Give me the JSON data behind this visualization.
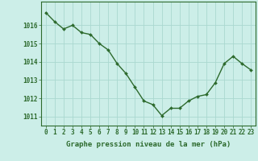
{
  "x": [
    0,
    1,
    2,
    3,
    4,
    5,
    6,
    7,
    8,
    9,
    10,
    11,
    12,
    13,
    14,
    15,
    16,
    17,
    18,
    19,
    20,
    21,
    22,
    23
  ],
  "y": [
    1016.7,
    1016.2,
    1015.8,
    1016.0,
    1015.6,
    1015.5,
    1015.0,
    1014.65,
    1013.9,
    1013.35,
    1012.6,
    1011.85,
    1011.65,
    1011.05,
    1011.45,
    1011.45,
    1011.85,
    1012.1,
    1012.2,
    1012.85,
    1013.9,
    1014.3,
    1013.9,
    1013.55
  ],
  "line_color": "#2d6a2d",
  "marker": "D",
  "marker_size": 2.0,
  "linewidth": 1.0,
  "background_color": "#cceee8",
  "grid_color": "#aad8d0",
  "xlabel": "Graphe pression niveau de la mer (hPa)",
  "xlabel_fontsize": 6.5,
  "tick_fontsize": 5.5,
  "ylim": [
    1010.5,
    1017.3
  ],
  "yticks": [
    1011,
    1012,
    1013,
    1014,
    1015,
    1016
  ],
  "xticks": [
    0,
    1,
    2,
    3,
    4,
    5,
    6,
    7,
    8,
    9,
    10,
    11,
    12,
    13,
    14,
    15,
    16,
    17,
    18,
    19,
    20,
    21,
    22,
    23
  ],
  "spine_color": "#2d6a2d",
  "label_color": "#2d6a2d"
}
